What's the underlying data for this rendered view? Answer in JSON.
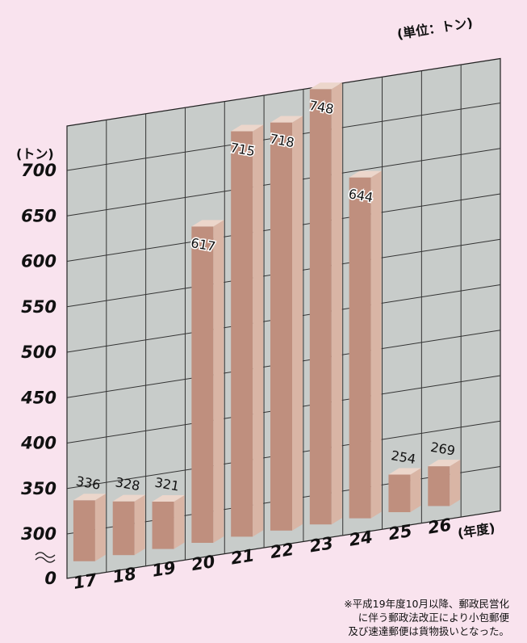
{
  "chart_data": {
    "type": "bar",
    "categories": [
      "17",
      "18",
      "19",
      "20",
      "21",
      "22",
      "23",
      "24",
      "25",
      "26"
    ],
    "values": [
      336,
      328,
      321,
      617,
      715,
      718,
      748,
      644,
      254,
      269
    ],
    "value_labels": [
      "336",
      "328",
      "321",
      "617",
      "715",
      "718",
      "748",
      "644",
      "254",
      "269"
    ],
    "yticks": [
      "700",
      "650",
      "600",
      "550",
      "500",
      "450",
      "400",
      "350",
      "300",
      "0"
    ],
    "ylim": [
      0,
      750
    ],
    "axis_break": "between 0 and 300",
    "ylabel_unit": "(トン)",
    "unit_note": "(単位：トン)",
    "xlabel_unit": "(年度)",
    "grid": true,
    "style": "3d-bars",
    "colors": {
      "background": "#f9e3ee",
      "grid_panel": "#c8ccca",
      "bar_front": "#bf8f7e",
      "bar_side": "#d9b5a5",
      "bar_top": "#ecd6cb"
    }
  },
  "footnote": {
    "line1": "※平成19年度10月以降、郵政民営化",
    "line2": "に伴う郵政法改正により小包郵便",
    "line3": "及び速達郵便は貨物扱いとなった。"
  }
}
